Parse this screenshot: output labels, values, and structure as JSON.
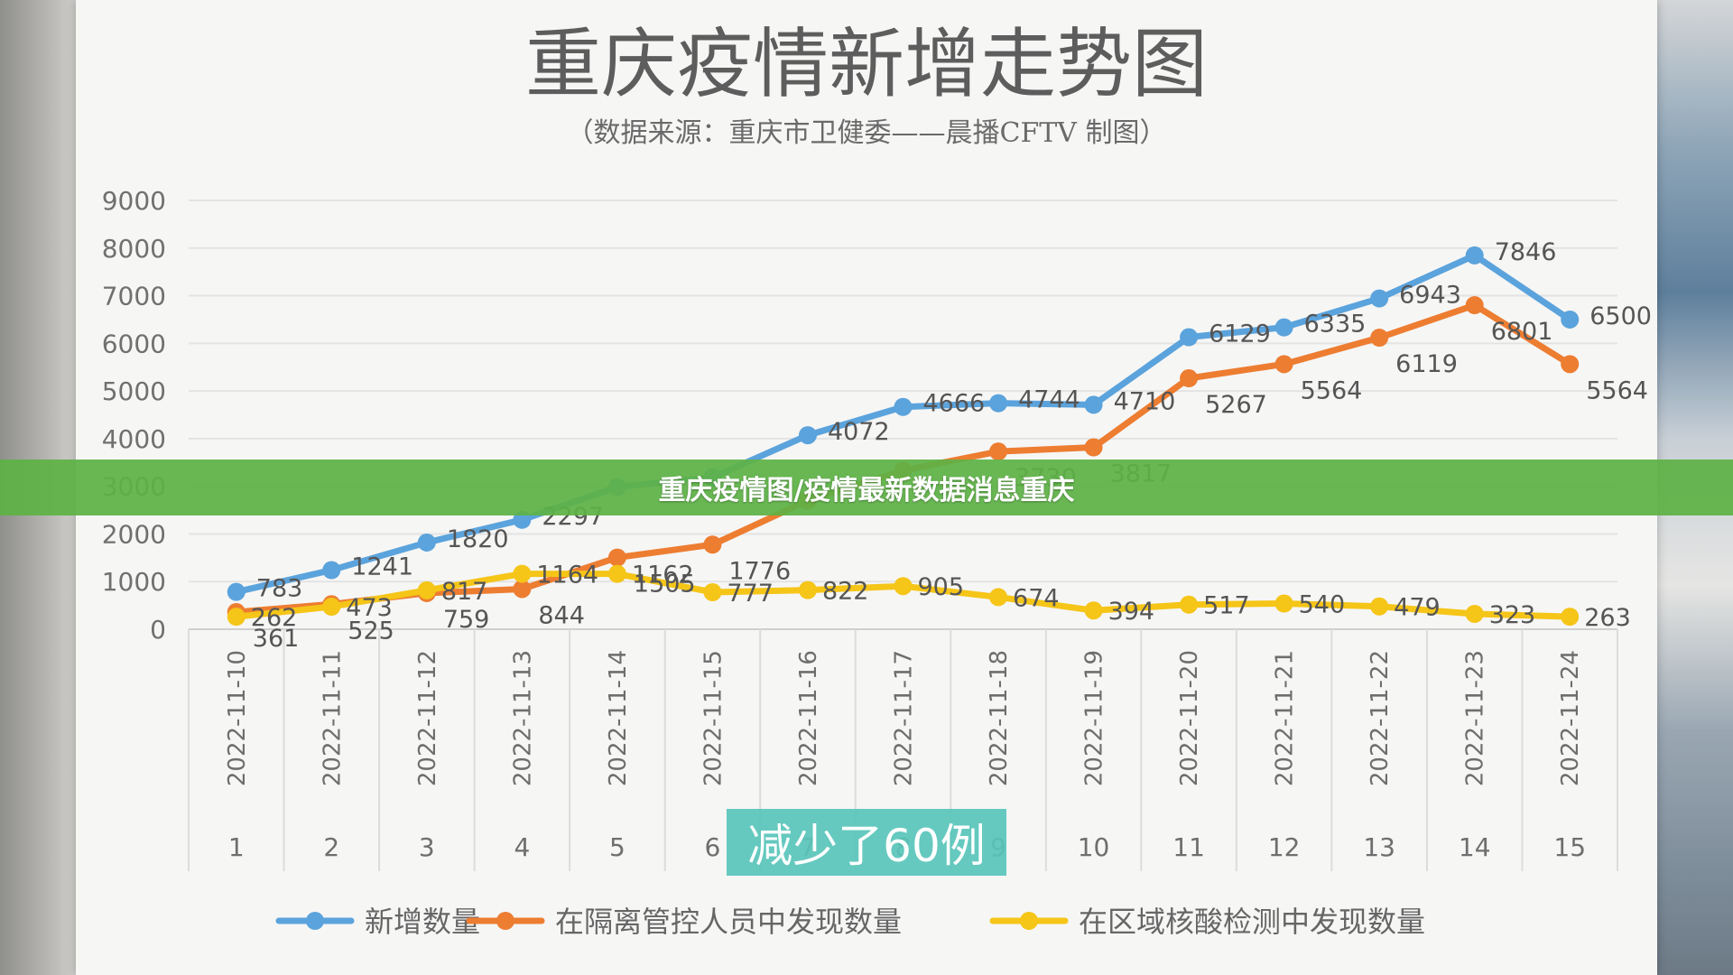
{
  "banner": {
    "text": "重庆疫情图/疫情最新数据消息重庆"
  },
  "caption": {
    "text": "减少了60例"
  },
  "chart_data": {
    "type": "line",
    "title": "重庆疫情新增走势图",
    "subtitle": "（数据来源：重庆市卫健委——晨播CFTV 制图）",
    "categories": [
      "2022-11-10",
      "2022-11-11",
      "2022-11-12",
      "2022-11-13",
      "2022-11-14",
      "2022-11-15",
      "2022-11-16",
      "2022-11-17",
      "2022-11-18",
      "2022-11-19",
      "2022-11-20",
      "2022-11-21",
      "2022-11-22",
      "2022-11-23",
      "2022-11-24"
    ],
    "index_labels": [
      "1",
      "2",
      "3",
      "4",
      "5",
      "6",
      "7",
      "8",
      "9",
      "10",
      "11",
      "12",
      "13",
      "14",
      "15"
    ],
    "yticks": [
      0,
      1000,
      2000,
      3000,
      4000,
      5000,
      6000,
      7000,
      8000,
      9000
    ],
    "ylim": [
      0,
      9000
    ],
    "grid": true,
    "legend_position": "bottom",
    "series": [
      {
        "name": "新增数量",
        "color": "#5ba3dc",
        "values": [
          783,
          1241,
          1820,
          2297,
          2986,
          3186,
          4072,
          4666,
          4744,
          4710,
          6129,
          6335,
          6943,
          7846,
          6500
        ],
        "labels": [
          "783",
          "1241",
          "1820",
          "2297",
          "",
          "",
          "4072",
          "4666",
          "4744",
          "4710",
          "6129",
          "6335",
          "6943",
          "7846",
          "6500"
        ]
      },
      {
        "name": "在隔离管控人员中发现数量",
        "color": "#ed7d31",
        "values": [
          361,
          525,
          759,
          844,
          1505,
          1776,
          2700,
          3331,
          3730,
          3817,
          5267,
          5564,
          6119,
          6801,
          5564
        ],
        "labels": [
          "361",
          "525",
          "759",
          "844",
          "1505",
          "1776",
          "",
          "",
          "3730",
          "3817",
          "5267",
          "5564",
          "6119",
          "6801",
          "5564"
        ]
      },
      {
        "name": "在区域核酸检测中发现数量",
        "color": "#f5c518",
        "values": [
          262,
          473,
          817,
          1164,
          1162,
          777,
          822,
          905,
          674,
          394,
          517,
          540,
          479,
          323,
          263
        ],
        "labels": [
          "262",
          "473",
          "817",
          "1164",
          "1162",
          "777",
          "822",
          "905",
          "674",
          "394",
          "517",
          "540",
          "479",
          "323",
          "263"
        ]
      }
    ]
  }
}
